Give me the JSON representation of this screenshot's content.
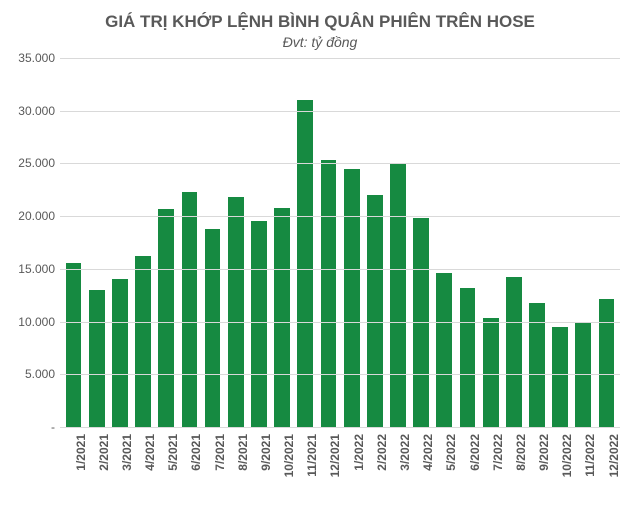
{
  "chart": {
    "type": "bar",
    "title": "GIÁ TRỊ KHỚP LỆNH BÌNH QUÂN PHIÊN TRÊN HOSE",
    "subtitle": "Đvt: tỷ đồng",
    "title_fontsize": 17,
    "subtitle_fontsize": 14,
    "title_color": "#595959",
    "background_color": "#ffffff",
    "grid_color": "#d9d9d9",
    "axis_color": "#bfbfbf",
    "bar_color": "#168a41",
    "bar_width": 0.68,
    "label_fontsize": 12,
    "xlabel_fontsize": 12,
    "xlabel_rotation": -90,
    "ylim": [
      0,
      35000
    ],
    "ytick_step": 5000,
    "yticks": [
      "-",
      "5.000",
      "10.000",
      "15.000",
      "20.000",
      "25.000",
      "30.000",
      "35.000"
    ],
    "categories": [
      "1/2021",
      "2/2021",
      "3/2021",
      "4/2021",
      "5/2021",
      "6/2021",
      "7/2021",
      "8/2021",
      "9/2021",
      "10/2021",
      "11/2021",
      "12/2021",
      "1/2022",
      "2/2022",
      "3/2022",
      "4/2022",
      "5/2022",
      "6/2022",
      "7/2022",
      "8/2022",
      "9/2022",
      "10/2022",
      "11/2022",
      "12/2022"
    ],
    "values": [
      15600,
      13000,
      14000,
      16200,
      20700,
      22300,
      18800,
      21800,
      19500,
      20800,
      31000,
      25300,
      24500,
      22000,
      25000,
      19800,
      14600,
      13200,
      10300,
      14200,
      11800,
      9500,
      10000,
      12100
    ]
  }
}
